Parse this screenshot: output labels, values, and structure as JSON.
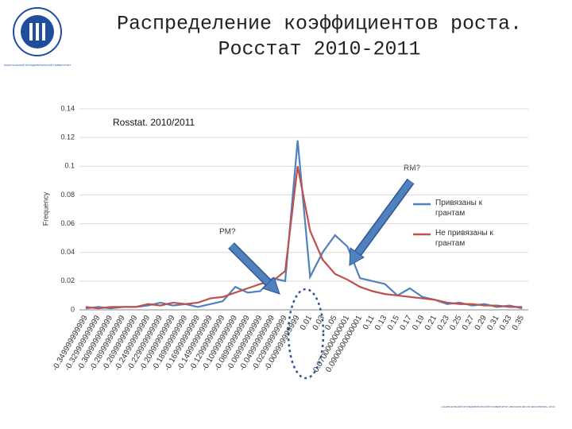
{
  "slide": {
    "title_lines": [
      "Распределение коэффициентов роста.",
      "Росстат 2010-2011"
    ],
    "logo_caption": "НАЦИОНАЛЬНЫЙ ИССЛЕДОВАТЕЛЬСКИЙ УНИВЕРСИТЕТ",
    "footer": "НАЦИОНАЛЬНЫЙ ИССЛЕДОВАТЕЛЬСКИЙ УНИВЕРСИТЕТ «ВЫСШАЯ ШКОЛА ЭКОНОМИКИ», 2012 г."
  },
  "chart_data": {
    "type": "line",
    "title": "Rosstat. 2010/2011",
    "y_label": "Frequency",
    "annotations": [
      "RM?",
      "PM?"
    ],
    "categories": [
      "-0.349999999999",
      "-0.329999999999",
      "-0.309999999999",
      "-0.289999999999",
      "-0.269999999999",
      "-0.249999999999",
      "-0.229999999999",
      "-0.209999999999",
      "-0.189999999999",
      "-0.169999999999",
      "-0.149999999999",
      "-0.129999999999",
      "-0.109999999999",
      "-0.089999999999",
      "-0.069999999999",
      "-0.049999999999",
      "-0.029999999999",
      "-0.009999999999",
      "0.01",
      "0.03",
      "0.05",
      "0.0700000000001",
      "0.0900000000001",
      "0.11",
      "0.13",
      "0.15",
      "0.17",
      "0.19",
      "0.21",
      "0.23",
      "0.25",
      "0.27",
      "0.29",
      "0.31",
      "0.33",
      "0.35"
    ],
    "series": [
      {
        "name": "Привязаны к грантам",
        "color": "#4f81bd",
        "values": [
          0.001,
          0.002,
          0.001,
          0.002,
          0.002,
          0.003,
          0.005,
          0.003,
          0.004,
          0.002,
          0.004,
          0.006,
          0.016,
          0.012,
          0.013,
          0.022,
          0.02,
          0.118,
          0.023,
          0.04,
          0.052,
          0.044,
          0.022,
          0.02,
          0.018,
          0.01,
          0.015,
          0.009,
          0.007,
          0.004,
          0.005,
          0.003,
          0.004,
          0.002,
          0.003,
          0.001
        ]
      },
      {
        "name": "Не привязаны к грантам",
        "color": "#c0504d",
        "values": [
          0.002,
          0.001,
          0.002,
          0.002,
          0.002,
          0.004,
          0.003,
          0.005,
          0.004,
          0.005,
          0.008,
          0.009,
          0.012,
          0.015,
          0.018,
          0.02,
          0.027,
          0.1,
          0.055,
          0.035,
          0.025,
          0.021,
          0.016,
          0.013,
          0.011,
          0.01,
          0.009,
          0.008,
          0.007,
          0.005,
          0.004,
          0.004,
          0.003,
          0.003,
          0.002,
          0.002
        ]
      }
    ],
    "ylim": [
      0,
      0.14
    ],
    "yticks": [
      0,
      0.02,
      0.04,
      0.06,
      0.08,
      0.1,
      0.12,
      0.14
    ],
    "grid": true
  }
}
